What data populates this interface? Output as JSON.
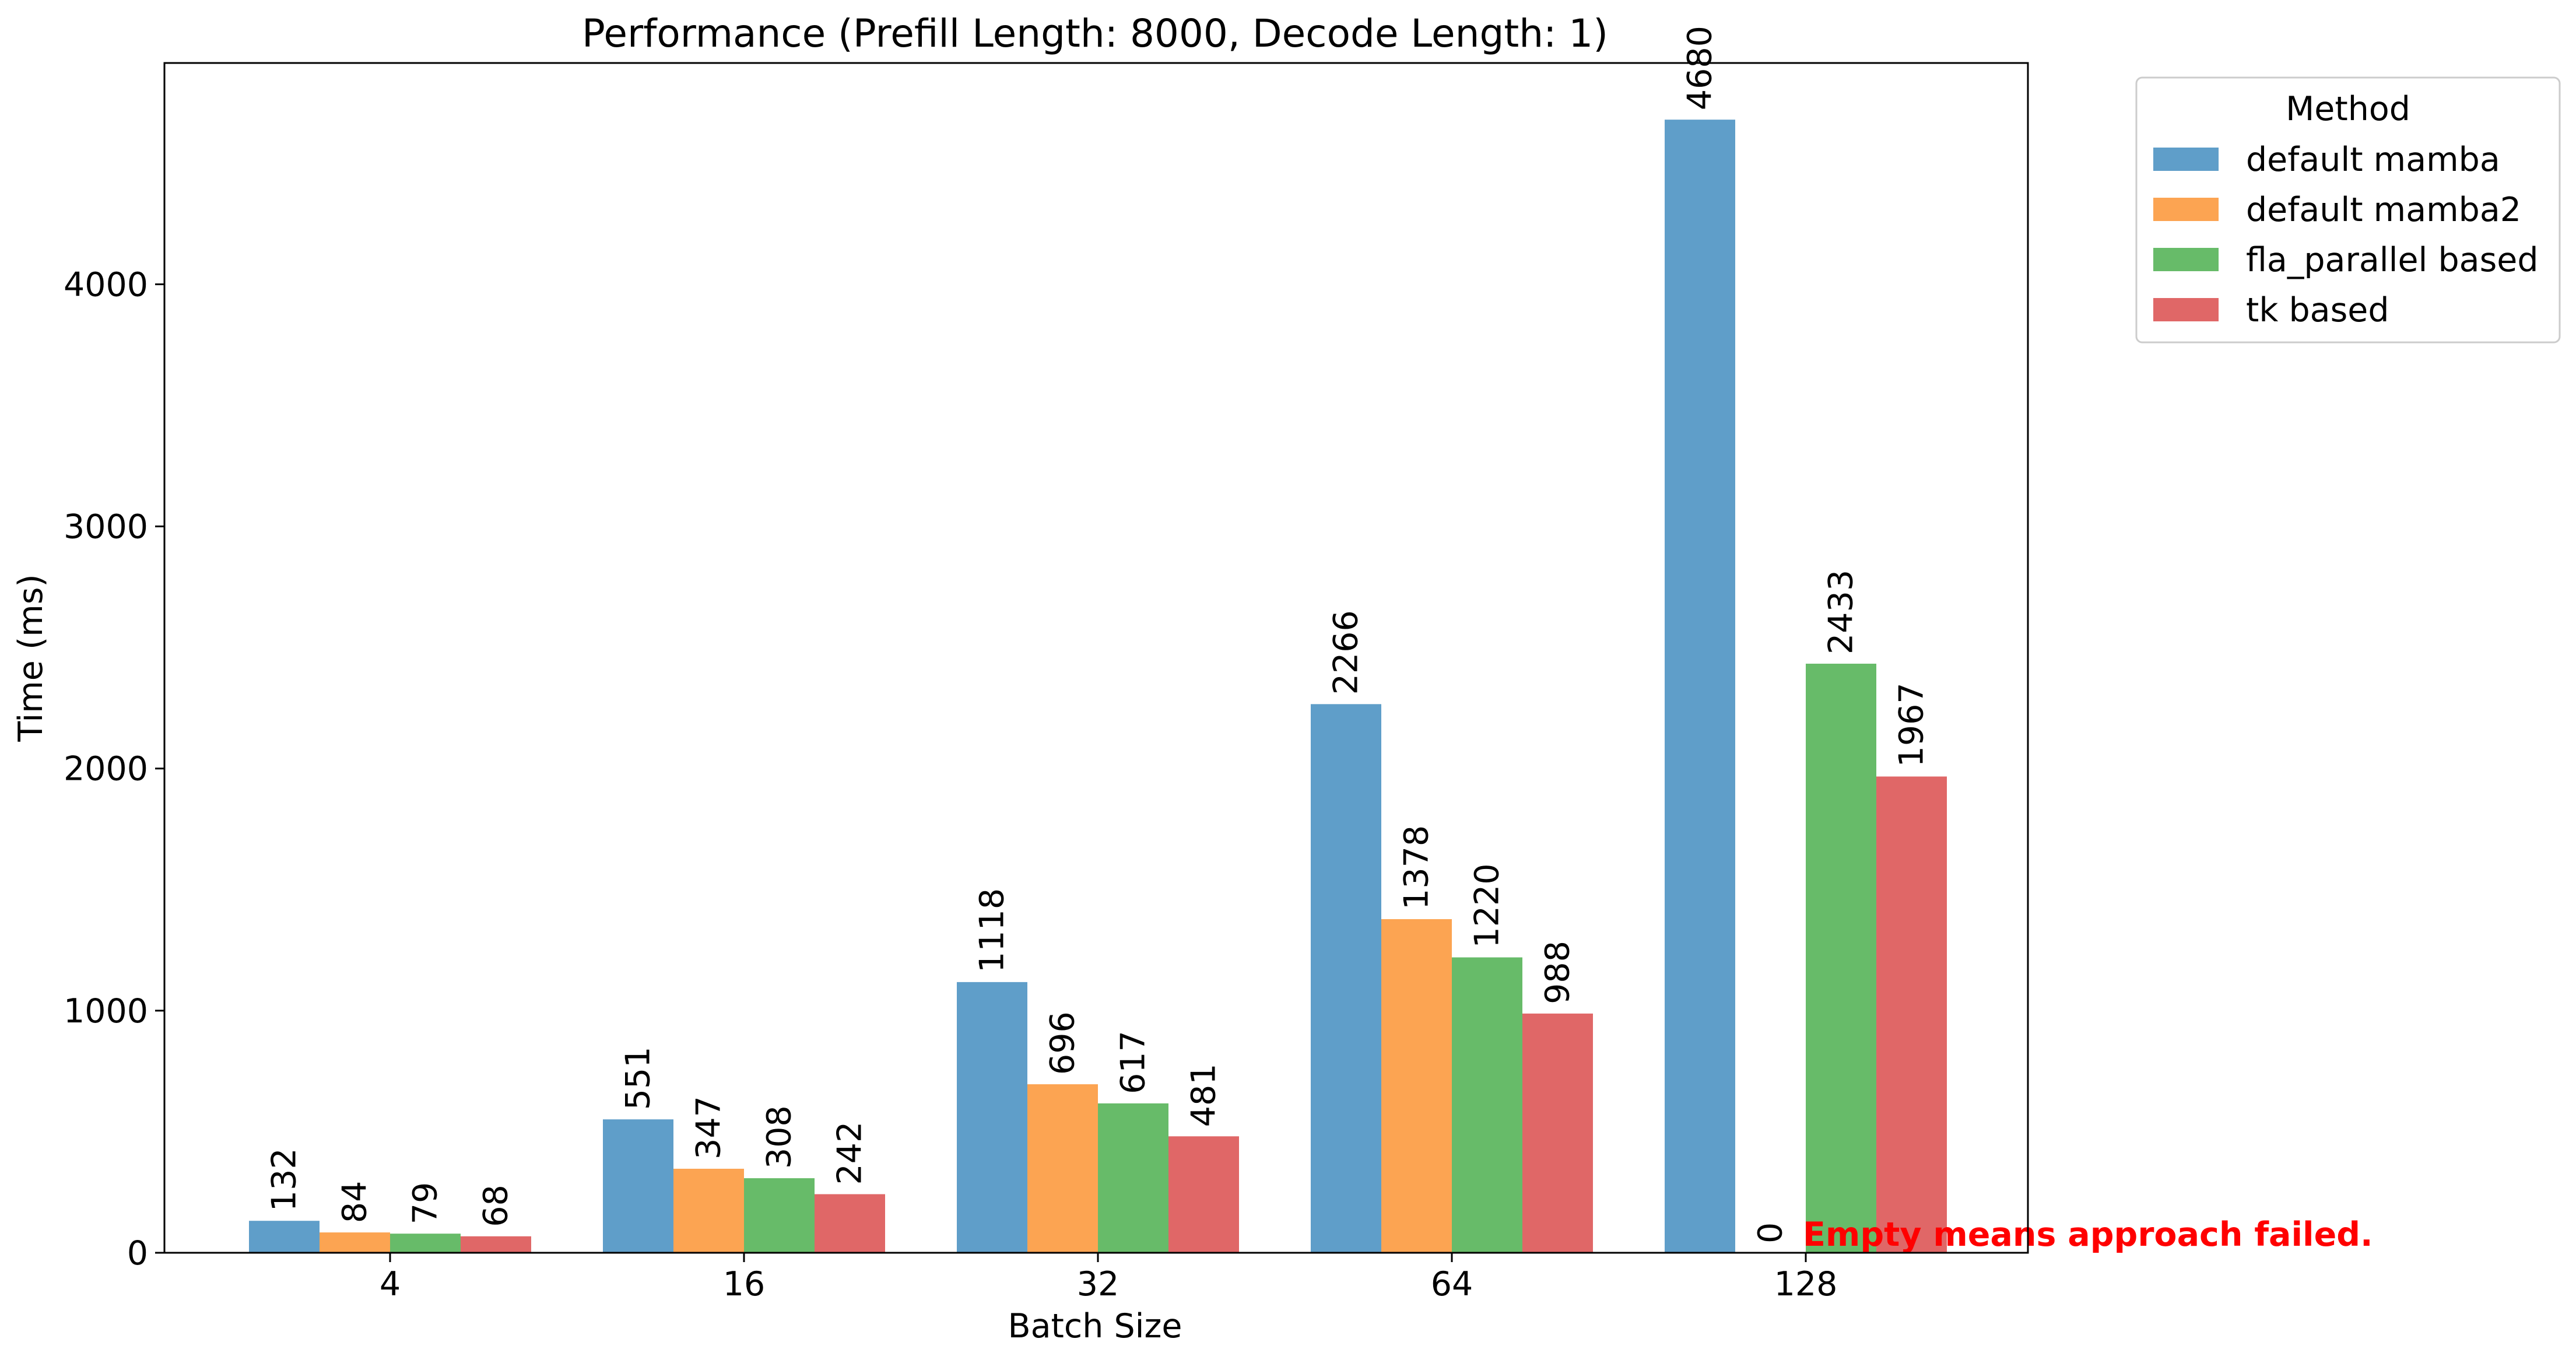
{
  "chart_data": {
    "type": "bar",
    "title": "Performance (Prefill Length: 8000, Decode Length: 1)",
    "xlabel": "Batch Size",
    "ylabel": "Time (ms)",
    "categories": [
      "4",
      "16",
      "32",
      "64",
      "128"
    ],
    "ylim": [
      0,
      4914
    ],
    "yticks": [
      0,
      1000,
      2000,
      3000,
      4000
    ],
    "grid": false,
    "legend": {
      "title": "Method",
      "placement": "outside top-right"
    },
    "series": [
      {
        "name": "default mamba",
        "color": "#5f9ec9",
        "values": [
          132,
          551,
          1118,
          2266,
          4680
        ],
        "labels": [
          "132",
          "551",
          "1118",
          "2266",
          "4680"
        ]
      },
      {
        "name": "default mamba2",
        "color": "#fca452",
        "values": [
          84,
          347,
          696,
          1378,
          0
        ],
        "labels": [
          "84",
          "347",
          "696",
          "1378",
          "0"
        ]
      },
      {
        "name": "fla_parallel based",
        "color": "#67bb69",
        "values": [
          79,
          308,
          617,
          1220,
          2433
        ],
        "labels": [
          "79",
          "308",
          "617",
          "1220",
          "2433"
        ]
      },
      {
        "name": "tk based",
        "color": "#e06767",
        "values": [
          68,
          242,
          481,
          988,
          1967
        ],
        "labels": [
          "68",
          "242",
          "481",
          "988",
          "1967"
        ]
      }
    ],
    "annotation": {
      "text": "Empty means approach failed.",
      "color": "#ff0000"
    }
  }
}
